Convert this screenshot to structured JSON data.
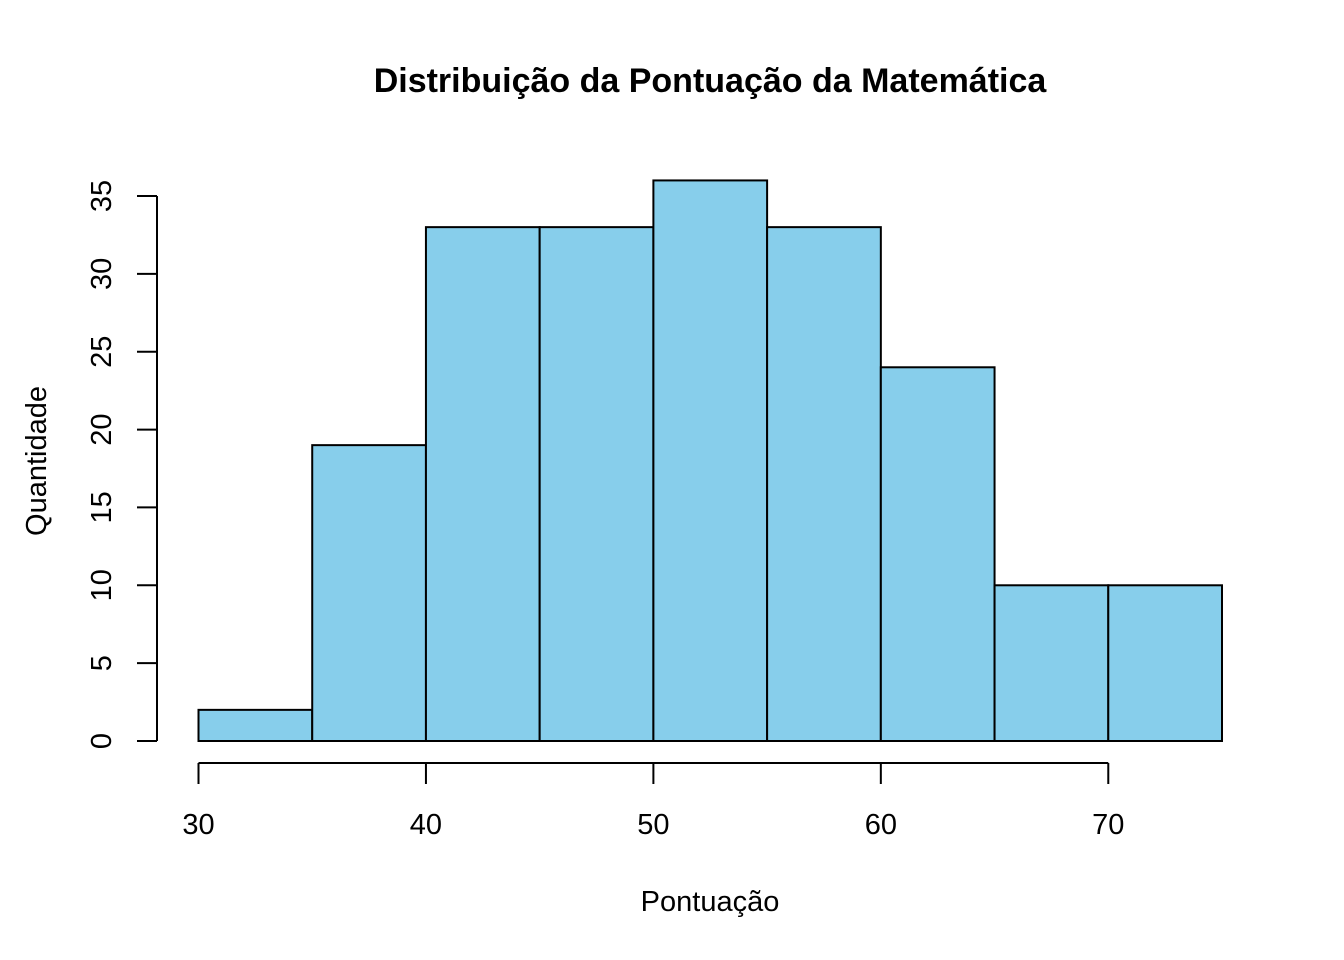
{
  "chart_data": {
    "type": "bar",
    "subtype": "histogram",
    "title": "Distribuição da Pontuação da Matemática",
    "xlabel": "Pontuação",
    "ylabel": "Quantidade",
    "bins": [
      {
        "start": 30,
        "end": 35,
        "count": 2
      },
      {
        "start": 35,
        "end": 40,
        "count": 19
      },
      {
        "start": 40,
        "end": 45,
        "count": 33
      },
      {
        "start": 45,
        "end": 50,
        "count": 33
      },
      {
        "start": 50,
        "end": 55,
        "count": 36
      },
      {
        "start": 55,
        "end": 60,
        "count": 33
      },
      {
        "start": 60,
        "end": 65,
        "count": 24
      },
      {
        "start": 65,
        "end": 70,
        "count": 10
      },
      {
        "start": 70,
        "end": 75,
        "count": 10
      }
    ],
    "xticks": [
      30,
      40,
      50,
      60,
      70
    ],
    "yticks": [
      0,
      5,
      10,
      15,
      20,
      25,
      30,
      35
    ],
    "xlim": [
      30,
      75
    ],
    "ylim": [
      0,
      35
    ],
    "bar_color": "#87CEEB",
    "edge_color": "#000000",
    "grid": false,
    "legend": "none"
  }
}
